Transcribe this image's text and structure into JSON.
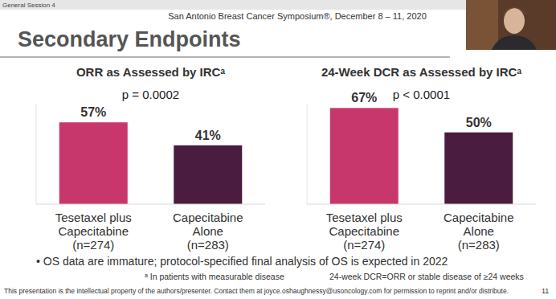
{
  "page": {
    "session": "General Session 4",
    "header": "San Antonio Breast Cancer Symposium®, December 8 – 11, 2020",
    "title": "Secondary Endpoints",
    "bullet": "• OS data are immature; protocol-specified final analysis of OS is expected in 2022",
    "footnotes": [
      "ᵃ In patients with measurable disease",
      "24-week DCR=ORR or stable disease of ≥24 weeks"
    ],
    "copyright": "This presentation is the intellectual property of the authors/presenter. Contact them at joyce.oshaughnessy@usoncology.com for permission to reprint and/or distribute.",
    "page_number": 11
  },
  "chart_data": [
    {
      "type": "bar",
      "title": "ORR as Assessed by IRCᵃ",
      "categories": [
        "Tesetaxel plus\nCapecitabine\n(n=274)",
        "Capecitabine\nAlone\n(n=283)"
      ],
      "values": [
        57,
        41
      ],
      "value_labels": [
        "57%",
        "41%"
      ],
      "colors": [
        "#c8376b",
        "#4a1c40"
      ],
      "ylim": [
        0,
        70
      ],
      "grid": false,
      "data_labels": true,
      "tick_labels": "x",
      "annotations": [
        "p = 0.0002"
      ]
    },
    {
      "type": "bar",
      "title": "24-Week DCR as Assessed by IRCᵃ",
      "categories": [
        "Tesetaxel plus\nCapecitabine\n(n=274)",
        "Capecitabine\nAlone\n(n=283)"
      ],
      "values": [
        67,
        50
      ],
      "value_labels": [
        "67%",
        "50%"
      ],
      "colors": [
        "#c8376b",
        "#4a1c40"
      ],
      "ylim": [
        0,
        70
      ],
      "grid": false,
      "data_labels": true,
      "tick_labels": "x",
      "annotations": [
        "p < 0.0001"
      ]
    }
  ]
}
